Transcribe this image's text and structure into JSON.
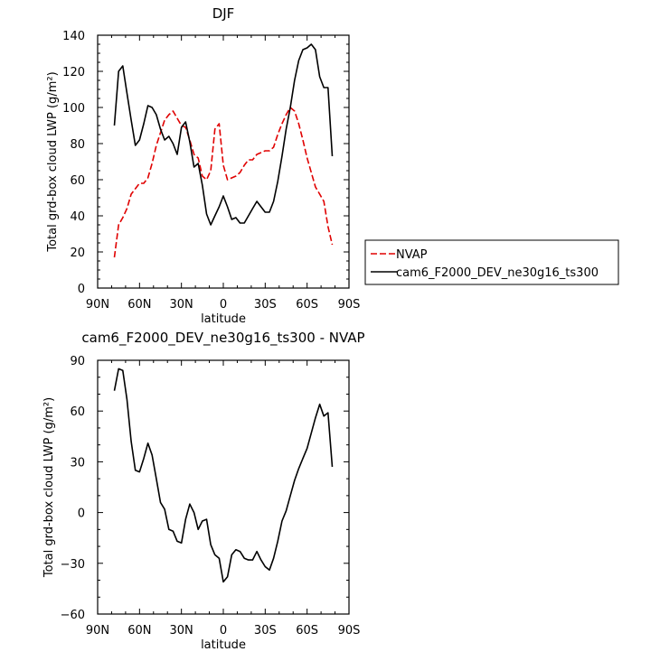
{
  "chart_data": [
    {
      "type": "line",
      "title": "DJF",
      "xlabel": "latitude",
      "ylabel": "Total grd-box cloud LWP (g/m²)",
      "xlim": [
        90,
        -90
      ],
      "ylim": [
        0,
        140
      ],
      "xticks": [
        90,
        60,
        30,
        0,
        -30,
        -60,
        -90
      ],
      "xtick_labels": [
        "90N",
        "60N",
        "30N",
        "0",
        "30S",
        "60S",
        "90S"
      ],
      "yticks": [
        0,
        20,
        40,
        60,
        80,
        100,
        120,
        140
      ],
      "ytick_labels": [
        "0",
        "20",
        "40",
        "60",
        "80",
        "100",
        "120",
        "140"
      ],
      "legend": "right",
      "series": [
        {
          "name": "NVAP",
          "color": "#e00000",
          "dash": true,
          "x": [
            78,
            75,
            72,
            69,
            66,
            63,
            60,
            57,
            54,
            51,
            48,
            45,
            42,
            39,
            36,
            33,
            30,
            27,
            24,
            21,
            18,
            15,
            12,
            9,
            6,
            3,
            0,
            -3,
            -6,
            -9,
            -12,
            -15,
            -18,
            -21,
            -24,
            -27,
            -30,
            -33,
            -36,
            -39,
            -42,
            -45,
            -48,
            -51,
            -54,
            -57,
            -60,
            -63,
            -66,
            -69,
            -72,
            -75,
            -78
          ],
          "y": [
            17,
            35,
            39,
            44,
            52,
            55,
            58,
            58,
            61,
            69,
            79,
            86,
            93,
            96,
            98,
            94,
            90,
            89,
            82,
            74,
            72,
            62,
            60,
            65,
            88,
            91,
            68,
            60,
            61,
            62,
            64,
            68,
            71,
            71,
            74,
            75,
            76,
            76,
            78,
            85,
            91,
            96,
            100,
            98,
            91,
            82,
            72,
            64,
            56,
            52,
            48,
            34,
            24
          ]
        },
        {
          "name": "cam6_F2000_DEV_ne30g16_ts300",
          "color": "#000000",
          "dash": false,
          "x": [
            78,
            75,
            72,
            69,
            66,
            63,
            60,
            57,
            54,
            51,
            48,
            45,
            42,
            39,
            36,
            33,
            30,
            27,
            24,
            21,
            18,
            15,
            12,
            9,
            6,
            3,
            0,
            -3,
            -6,
            -9,
            -12,
            -15,
            -18,
            -21,
            -24,
            -27,
            -30,
            -33,
            -36,
            -39,
            -42,
            -45,
            -48,
            -51,
            -54,
            -57,
            -60,
            -63,
            -66,
            -69,
            -72,
            -75,
            -78
          ],
          "y": [
            90,
            120,
            123,
            108,
            93,
            79,
            82,
            91,
            101,
            100,
            96,
            88,
            82,
            84,
            80,
            74,
            89,
            92,
            81,
            67,
            69,
            57,
            41,
            35,
            40,
            45,
            51,
            45,
            38,
            39,
            36,
            36,
            40,
            44,
            48,
            45,
            42,
            42,
            48,
            59,
            73,
            88,
            100,
            115,
            126,
            132,
            133,
            135,
            132,
            117,
            111,
            111,
            73
          ]
        }
      ]
    },
    {
      "type": "line",
      "title": "cam6_F2000_DEV_ne30g16_ts300 - NVAP",
      "xlabel": "latitude",
      "ylabel": "Total grd-box cloud LWP (g/m²)",
      "xlim": [
        90,
        -90
      ],
      "ylim": [
        -60,
        90
      ],
      "xticks": [
        90,
        60,
        30,
        0,
        -30,
        -60,
        -90
      ],
      "xtick_labels": [
        "90N",
        "60N",
        "30N",
        "0",
        "30S",
        "60S",
        "90S"
      ],
      "yticks": [
        -60,
        -30,
        0,
        30,
        60,
        90
      ],
      "ytick_labels": [
        "−60",
        "−30",
        "0",
        "30",
        "60",
        "90"
      ],
      "series": [
        {
          "color": "#000000",
          "dash": false,
          "x": [
            78,
            75,
            72,
            69,
            66,
            63,
            60,
            57,
            54,
            51,
            48,
            45,
            42,
            39,
            36,
            33,
            30,
            27,
            24,
            21,
            18,
            15,
            12,
            9,
            6,
            3,
            0,
            -3,
            -6,
            -9,
            -12,
            -15,
            -18,
            -21,
            -24,
            -27,
            -30,
            -33,
            -36,
            -39,
            -42,
            -45,
            -48,
            -51,
            -54,
            -57,
            -60,
            -63,
            -66,
            -69,
            -72,
            -75,
            -78
          ],
          "y": [
            72,
            85,
            84,
            67,
            42,
            25,
            24,
            32,
            41,
            34,
            20,
            6,
            2,
            -10,
            -11,
            -17,
            -18,
            -4,
            5,
            0,
            -10,
            -5,
            -4,
            -19,
            -25,
            -27,
            -41,
            -38,
            -25,
            -22,
            -23,
            -27,
            -28,
            -28,
            -23,
            -28,
            -32,
            -34,
            -27,
            -17,
            -5,
            1,
            10,
            19,
            26,
            32,
            38,
            47,
            56,
            64,
            57,
            59,
            27
          ]
        }
      ]
    }
  ]
}
